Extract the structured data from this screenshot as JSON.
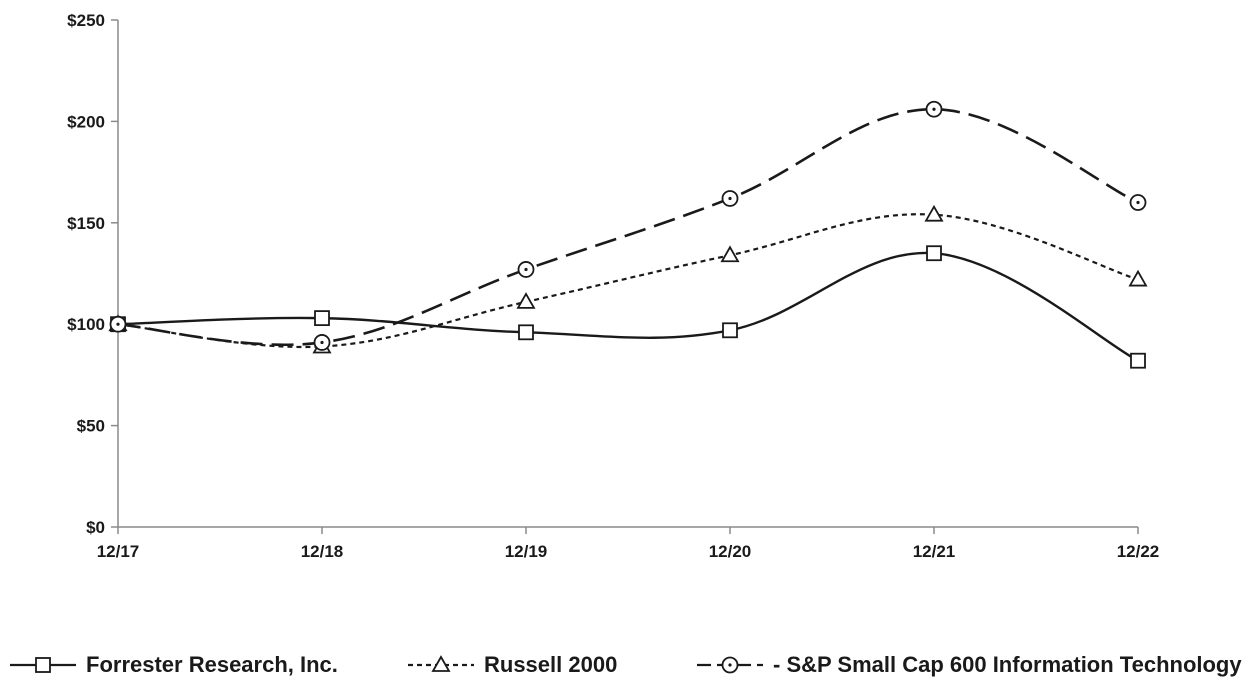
{
  "chart_data": {
    "type": "line",
    "title": "",
    "xlabel": "",
    "ylabel": "",
    "categories": [
      "12/17",
      "12/18",
      "12/19",
      "12/20",
      "12/21",
      "12/22"
    ],
    "ylim": [
      0,
      250
    ],
    "yticks": [
      0,
      50,
      100,
      150,
      200,
      250
    ],
    "ytick_labels": [
      "$0",
      "$50",
      "$100",
      "$150",
      "$200",
      "$250"
    ],
    "grid": false,
    "legend_position": "bottom",
    "series": [
      {
        "name": "Forrester Research, Inc.",
        "legend_prefix": "",
        "values": [
          100,
          103,
          96,
          97,
          135,
          82
        ],
        "color": "#1a1a1a",
        "line_style": "solid",
        "marker": "square"
      },
      {
        "name": "Russell 2000",
        "legend_prefix": "",
        "values": [
          100,
          89,
          111,
          134,
          154,
          122
        ],
        "color": "#1a1a1a",
        "line_style": "dotted",
        "marker": "triangle"
      },
      {
        "name": "S&P Small Cap 600 Information Technology",
        "legend_prefix": "- ",
        "values": [
          100,
          91,
          127,
          162,
          206,
          160
        ],
        "color": "#1a1a1a",
        "line_style": "long-dash",
        "marker": "circle-dot"
      }
    ]
  }
}
